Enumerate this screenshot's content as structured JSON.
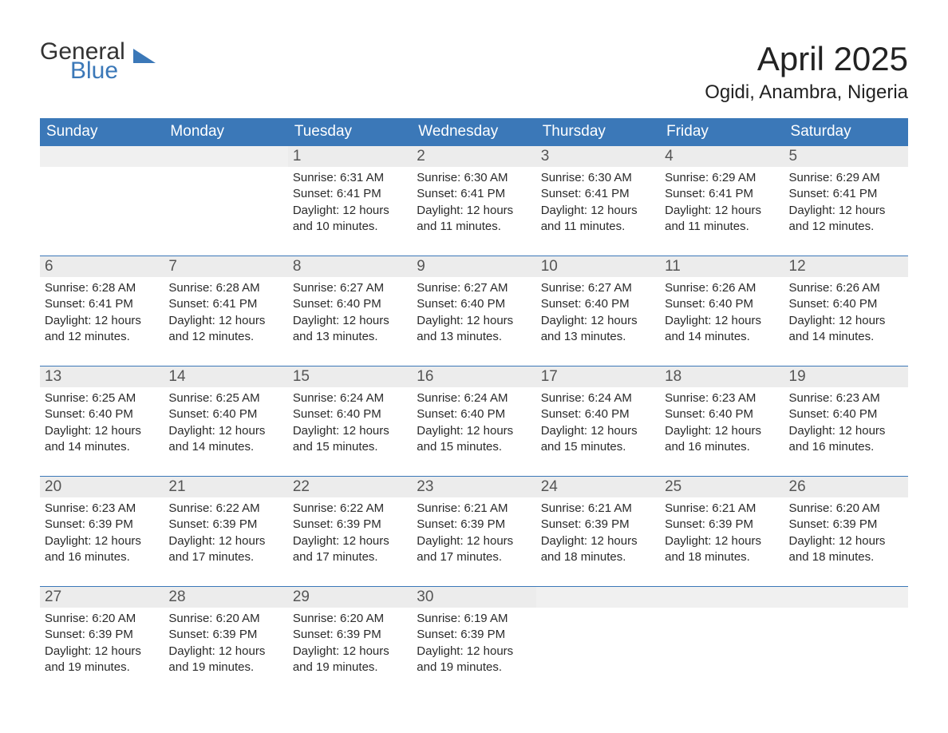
{
  "logo": {
    "text1": "General",
    "text2": "Blue",
    "accent_color": "#3b78b8",
    "text_color": "#333333"
  },
  "header": {
    "month_title": "April 2025",
    "location": "Ogidi, Anambra, Nigeria"
  },
  "colors": {
    "header_bg": "#3b78b8",
    "header_text": "#ffffff",
    "daynum_bg": "#ececec",
    "daynum_text": "#555555",
    "body_text": "#2a2a2a",
    "page_bg": "#ffffff",
    "row_border": "#3b78b8"
  },
  "weekdays": [
    "Sunday",
    "Monday",
    "Tuesday",
    "Wednesday",
    "Thursday",
    "Friday",
    "Saturday"
  ],
  "weeks": [
    [
      {
        "empty": true
      },
      {
        "empty": true
      },
      {
        "day": "1",
        "sunrise": "Sunrise: 6:31 AM",
        "sunset": "Sunset: 6:41 PM",
        "daylight1": "Daylight: 12 hours",
        "daylight2": "and 10 minutes."
      },
      {
        "day": "2",
        "sunrise": "Sunrise: 6:30 AM",
        "sunset": "Sunset: 6:41 PM",
        "daylight1": "Daylight: 12 hours",
        "daylight2": "and 11 minutes."
      },
      {
        "day": "3",
        "sunrise": "Sunrise: 6:30 AM",
        "sunset": "Sunset: 6:41 PM",
        "daylight1": "Daylight: 12 hours",
        "daylight2": "and 11 minutes."
      },
      {
        "day": "4",
        "sunrise": "Sunrise: 6:29 AM",
        "sunset": "Sunset: 6:41 PM",
        "daylight1": "Daylight: 12 hours",
        "daylight2": "and 11 minutes."
      },
      {
        "day": "5",
        "sunrise": "Sunrise: 6:29 AM",
        "sunset": "Sunset: 6:41 PM",
        "daylight1": "Daylight: 12 hours",
        "daylight2": "and 12 minutes."
      }
    ],
    [
      {
        "day": "6",
        "sunrise": "Sunrise: 6:28 AM",
        "sunset": "Sunset: 6:41 PM",
        "daylight1": "Daylight: 12 hours",
        "daylight2": "and 12 minutes."
      },
      {
        "day": "7",
        "sunrise": "Sunrise: 6:28 AM",
        "sunset": "Sunset: 6:41 PM",
        "daylight1": "Daylight: 12 hours",
        "daylight2": "and 12 minutes."
      },
      {
        "day": "8",
        "sunrise": "Sunrise: 6:27 AM",
        "sunset": "Sunset: 6:40 PM",
        "daylight1": "Daylight: 12 hours",
        "daylight2": "and 13 minutes."
      },
      {
        "day": "9",
        "sunrise": "Sunrise: 6:27 AM",
        "sunset": "Sunset: 6:40 PM",
        "daylight1": "Daylight: 12 hours",
        "daylight2": "and 13 minutes."
      },
      {
        "day": "10",
        "sunrise": "Sunrise: 6:27 AM",
        "sunset": "Sunset: 6:40 PM",
        "daylight1": "Daylight: 12 hours",
        "daylight2": "and 13 minutes."
      },
      {
        "day": "11",
        "sunrise": "Sunrise: 6:26 AM",
        "sunset": "Sunset: 6:40 PM",
        "daylight1": "Daylight: 12 hours",
        "daylight2": "and 14 minutes."
      },
      {
        "day": "12",
        "sunrise": "Sunrise: 6:26 AM",
        "sunset": "Sunset: 6:40 PM",
        "daylight1": "Daylight: 12 hours",
        "daylight2": "and 14 minutes."
      }
    ],
    [
      {
        "day": "13",
        "sunrise": "Sunrise: 6:25 AM",
        "sunset": "Sunset: 6:40 PM",
        "daylight1": "Daylight: 12 hours",
        "daylight2": "and 14 minutes."
      },
      {
        "day": "14",
        "sunrise": "Sunrise: 6:25 AM",
        "sunset": "Sunset: 6:40 PM",
        "daylight1": "Daylight: 12 hours",
        "daylight2": "and 14 minutes."
      },
      {
        "day": "15",
        "sunrise": "Sunrise: 6:24 AM",
        "sunset": "Sunset: 6:40 PM",
        "daylight1": "Daylight: 12 hours",
        "daylight2": "and 15 minutes."
      },
      {
        "day": "16",
        "sunrise": "Sunrise: 6:24 AM",
        "sunset": "Sunset: 6:40 PM",
        "daylight1": "Daylight: 12 hours",
        "daylight2": "and 15 minutes."
      },
      {
        "day": "17",
        "sunrise": "Sunrise: 6:24 AM",
        "sunset": "Sunset: 6:40 PM",
        "daylight1": "Daylight: 12 hours",
        "daylight2": "and 15 minutes."
      },
      {
        "day": "18",
        "sunrise": "Sunrise: 6:23 AM",
        "sunset": "Sunset: 6:40 PM",
        "daylight1": "Daylight: 12 hours",
        "daylight2": "and 16 minutes."
      },
      {
        "day": "19",
        "sunrise": "Sunrise: 6:23 AM",
        "sunset": "Sunset: 6:40 PM",
        "daylight1": "Daylight: 12 hours",
        "daylight2": "and 16 minutes."
      }
    ],
    [
      {
        "day": "20",
        "sunrise": "Sunrise: 6:23 AM",
        "sunset": "Sunset: 6:39 PM",
        "daylight1": "Daylight: 12 hours",
        "daylight2": "and 16 minutes."
      },
      {
        "day": "21",
        "sunrise": "Sunrise: 6:22 AM",
        "sunset": "Sunset: 6:39 PM",
        "daylight1": "Daylight: 12 hours",
        "daylight2": "and 17 minutes."
      },
      {
        "day": "22",
        "sunrise": "Sunrise: 6:22 AM",
        "sunset": "Sunset: 6:39 PM",
        "daylight1": "Daylight: 12 hours",
        "daylight2": "and 17 minutes."
      },
      {
        "day": "23",
        "sunrise": "Sunrise: 6:21 AM",
        "sunset": "Sunset: 6:39 PM",
        "daylight1": "Daylight: 12 hours",
        "daylight2": "and 17 minutes."
      },
      {
        "day": "24",
        "sunrise": "Sunrise: 6:21 AM",
        "sunset": "Sunset: 6:39 PM",
        "daylight1": "Daylight: 12 hours",
        "daylight2": "and 18 minutes."
      },
      {
        "day": "25",
        "sunrise": "Sunrise: 6:21 AM",
        "sunset": "Sunset: 6:39 PM",
        "daylight1": "Daylight: 12 hours",
        "daylight2": "and 18 minutes."
      },
      {
        "day": "26",
        "sunrise": "Sunrise: 6:20 AM",
        "sunset": "Sunset: 6:39 PM",
        "daylight1": "Daylight: 12 hours",
        "daylight2": "and 18 minutes."
      }
    ],
    [
      {
        "day": "27",
        "sunrise": "Sunrise: 6:20 AM",
        "sunset": "Sunset: 6:39 PM",
        "daylight1": "Daylight: 12 hours",
        "daylight2": "and 19 minutes."
      },
      {
        "day": "28",
        "sunrise": "Sunrise: 6:20 AM",
        "sunset": "Sunset: 6:39 PM",
        "daylight1": "Daylight: 12 hours",
        "daylight2": "and 19 minutes."
      },
      {
        "day": "29",
        "sunrise": "Sunrise: 6:20 AM",
        "sunset": "Sunset: 6:39 PM",
        "daylight1": "Daylight: 12 hours",
        "daylight2": "and 19 minutes."
      },
      {
        "day": "30",
        "sunrise": "Sunrise: 6:19 AM",
        "sunset": "Sunset: 6:39 PM",
        "daylight1": "Daylight: 12 hours",
        "daylight2": "and 19 minutes."
      },
      {
        "empty": true
      },
      {
        "empty": true
      },
      {
        "empty": true
      }
    ]
  ]
}
